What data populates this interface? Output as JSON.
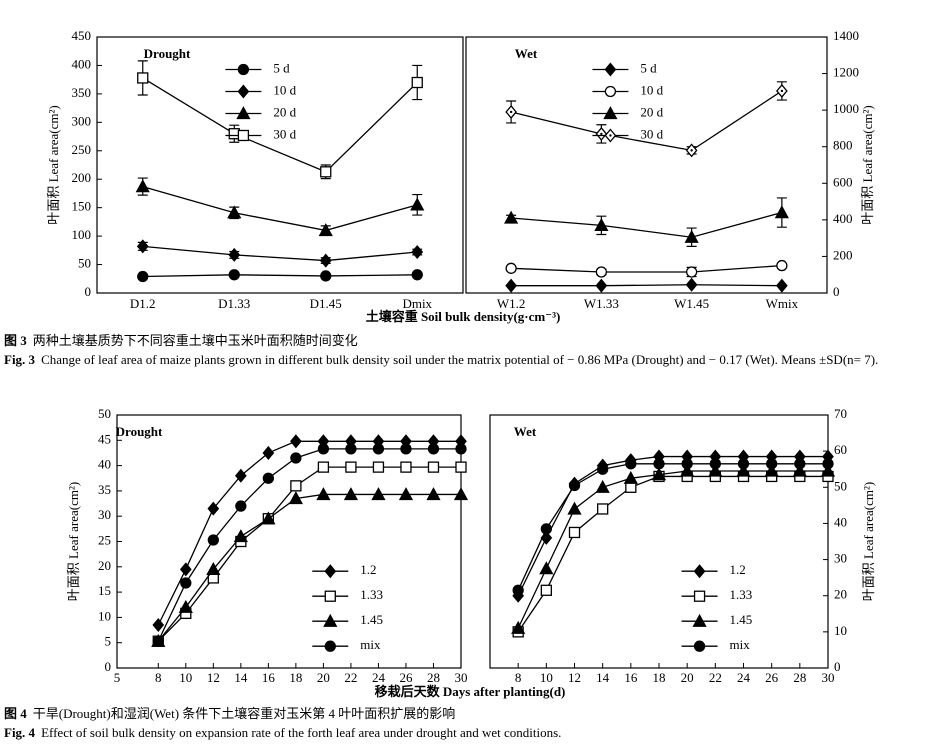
{
  "chart_data": [
    {
      "type": "line",
      "title": "Drought",
      "ylabel": "叶面积 Leaf area(cm²)",
      "yaxis_side": "left",
      "legend": "upper center",
      "categories": [
        "D1.2",
        "D1.33",
        "D1.45",
        "Dmix"
      ],
      "ylim": [
        0,
        450
      ],
      "yticks": [
        0,
        50,
        100,
        150,
        200,
        250,
        300,
        350,
        400,
        450
      ],
      "series": [
        {
          "name": "5 d",
          "color": "#000000",
          "marker": "circle-filled",
          "values": [
            29,
            32,
            30,
            32
          ]
        },
        {
          "name": "10 d",
          "color": "#000000",
          "marker": "diamond-filled",
          "values": [
            82,
            67,
            57,
            72
          ],
          "errors": [
            7,
            6,
            5,
            5
          ]
        },
        {
          "name": "20 d",
          "color": "#000000",
          "marker": "triangle-filled",
          "values": [
            187,
            141,
            110,
            155
          ],
          "errors": [
            15,
            10,
            8,
            18
          ]
        },
        {
          "name": "30 d",
          "color": "#000000",
          "marker": "square-open",
          "values": [
            378,
            280,
            213,
            370
          ],
          "errors": [
            30,
            15,
            12,
            30
          ]
        }
      ]
    },
    {
      "type": "line",
      "title": "Wet",
      "ylabel": "叶面积 Leaf area(cm²)",
      "yaxis_side": "right",
      "legend": "upper center",
      "categories": [
        "W1.2",
        "W1.33",
        "W1.45",
        "Wmix"
      ],
      "ylim": [
        0,
        1400
      ],
      "yticks": [
        0,
        200,
        400,
        600,
        800,
        1000,
        1200,
        1400
      ],
      "series": [
        {
          "name": "5 d",
          "color": "#000000",
          "marker": "diamond-filled",
          "values": [
            40,
            40,
            45,
            40
          ]
        },
        {
          "name": "10 d",
          "color": "#000000",
          "marker": "circle-open",
          "values": [
            135,
            115,
            115,
            150
          ],
          "errors": [
            10,
            15,
            25,
            10
          ]
        },
        {
          "name": "20 d",
          "color": "#000000",
          "marker": "triangle-filled",
          "values": [
            410,
            370,
            305,
            440
          ],
          "errors": [
            15,
            50,
            50,
            80
          ]
        },
        {
          "name": "30 d",
          "color": "#000000",
          "marker": "diamond-open",
          "values": [
            990,
            870,
            780,
            1105
          ],
          "errors": [
            60,
            50,
            20,
            50
          ]
        }
      ]
    },
    {
      "type": "line",
      "title": "Drought",
      "ylabel": "叶面积 Leaf area(cm²)",
      "yaxis_side": "left",
      "legend": "lower center",
      "x": [
        8,
        10,
        12,
        14,
        16,
        18,
        20,
        22,
        24,
        26,
        28,
        30
      ],
      "xlim": [
        5,
        30
      ],
      "xticks": [
        5,
        8,
        10,
        12,
        14,
        16,
        18,
        20,
        22,
        24,
        26,
        28,
        30
      ],
      "ylim": [
        0,
        50
      ],
      "yticks": [
        0,
        5,
        10,
        15,
        20,
        25,
        30,
        35,
        40,
        45,
        50
      ],
      "series": [
        {
          "name": "1.2",
          "color": "#000000",
          "marker": "diamond-filled",
          "values": [
            8.5,
            19.5,
            31.5,
            38,
            42.5,
            44.8,
            44.8,
            44.8,
            44.8,
            44.8,
            44.8,
            44.8
          ]
        },
        {
          "name": "1.33",
          "color": "#000000",
          "marker": "square-open",
          "values": [
            5.3,
            10.8,
            17.8,
            25,
            29.5,
            36,
            39.7,
            39.7,
            39.7,
            39.7,
            39.7,
            39.7
          ]
        },
        {
          "name": "1.45",
          "color": "#000000",
          "marker": "triangle-filled",
          "values": [
            5.3,
            12,
            19.5,
            26,
            29.5,
            33.5,
            34.3,
            34.3,
            34.3,
            34.3,
            34.3,
            34.3
          ]
        },
        {
          "name": "mix",
          "color": "#000000",
          "marker": "circle-filled",
          "values": [
            5.3,
            16.8,
            25.3,
            32,
            37.5,
            41.5,
            43.3,
            43.3,
            43.3,
            43.3,
            43.3,
            43.3
          ]
        }
      ]
    },
    {
      "type": "line",
      "title": "Wet",
      "ylabel": "叶面积 Leaf area(cm²)",
      "yaxis_side": "right",
      "legend": "lower center",
      "x": [
        8,
        10,
        12,
        14,
        16,
        18,
        20,
        22,
        24,
        26,
        28,
        30
      ],
      "xlim": [
        6,
        30
      ],
      "xticks": [
        8,
        10,
        12,
        14,
        16,
        18,
        20,
        22,
        24,
        26,
        28,
        30
      ],
      "ylim": [
        0,
        70
      ],
      "yticks": [
        0,
        10,
        20,
        30,
        40,
        50,
        60,
        70
      ],
      "series": [
        {
          "name": "1.2",
          "color": "#000000",
          "marker": "diamond-filled",
          "values": [
            20,
            36,
            51,
            56,
            57.5,
            58.5,
            58.5,
            58.5,
            58.5,
            58.5,
            58.5,
            58.5
          ]
        },
        {
          "name": "1.33",
          "color": "#000000",
          "marker": "square-open",
          "values": [
            10,
            21.5,
            37.5,
            44,
            50,
            53,
            53,
            53,
            53,
            53,
            53,
            53
          ]
        },
        {
          "name": "1.45",
          "color": "#000000",
          "marker": "triangle-filled",
          "values": [
            11,
            27.5,
            44,
            50,
            52.5,
            53.5,
            54.5,
            54.5,
            54.5,
            54.5,
            54.5,
            54.5
          ]
        },
        {
          "name": "mix",
          "color": "#000000",
          "marker": "circle-filled",
          "values": [
            21.5,
            38.5,
            50.5,
            55,
            56.5,
            56.5,
            56.5,
            56.5,
            56.5,
            56.5,
            56.5,
            56.5
          ]
        }
      ]
    }
  ],
  "figure_3": {
    "xlabel": "土壤容重 Soil bulk density(g·cm⁻³)",
    "label_cn": "图 3",
    "caption_cn": "两种土壤基质势下不同容重土壤中玉米叶面积随时间变化",
    "label_en": "Fig. 3",
    "caption_en": "Change of leaf area of maize plants grown in different bulk density soil under the matrix potential of − 0.86 MPa (Drought) and − 0.17 (Wet). Means ±SD(n= 7)."
  },
  "figure_4": {
    "xlabel": "移栽后天数 Days after planting(d)",
    "label_cn": "图 4",
    "caption_cn": "干旱(Drought)和湿润(Wet) 条件下土壤容重对玉米第 4 叶叶面积扩展的影响",
    "label_en": "Fig. 4",
    "caption_en": "Effect of soil bulk density on expansion rate of the forth leaf area under drought and wet conditions."
  }
}
